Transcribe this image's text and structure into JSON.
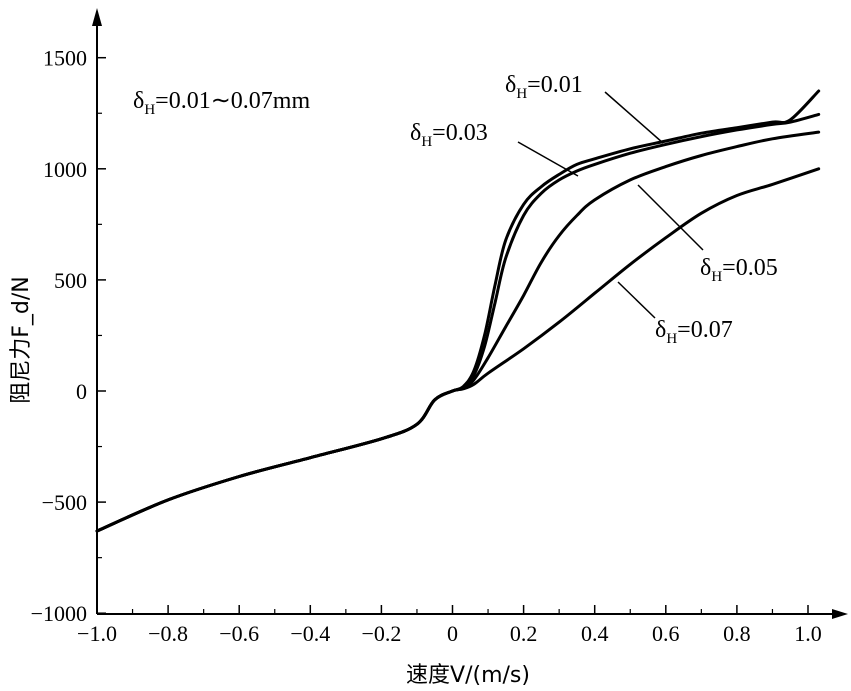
{
  "chart_data": {
    "type": "line",
    "xlabel": "速度V/(m/s)",
    "ylabel": "阻尼力F_d/N",
    "xlim": [
      -1.0,
      1.05
    ],
    "ylim": [
      -1000,
      1650
    ],
    "xticks": [
      "−1.0",
      "−0.8",
      "−0.6",
      "−0.4",
      "−0.2",
      "0",
      "0.2",
      "0.4",
      "0.6",
      "0.8",
      "1.0"
    ],
    "xtick_values": [
      -1.0,
      -0.8,
      -0.6,
      -0.4,
      -0.2,
      0,
      0.2,
      0.4,
      0.6,
      0.8,
      1.0
    ],
    "yticks": [
      "−1000",
      "−500",
      "0",
      "500",
      "1000",
      "1500"
    ],
    "ytick_values": [
      -1000,
      -500,
      0,
      500,
      1000,
      1500
    ],
    "grid": false,
    "annotation_range": "δH=0.01∼0.07mm",
    "series": [
      {
        "name": "δH=0.01",
        "x": [
          -1.0,
          -0.8,
          -0.6,
          -0.4,
          -0.2,
          -0.1,
          -0.05,
          0,
          0.03,
          0.06,
          0.09,
          0.12,
          0.15,
          0.2,
          0.25,
          0.3,
          0.35,
          0.4,
          0.5,
          0.6,
          0.7,
          0.8,
          0.9,
          0.95,
          1.03
        ],
        "y": [
          -630,
          -490,
          -385,
          -300,
          -215,
          -150,
          -40,
          0,
          20,
          90,
          250,
          480,
          680,
          840,
          920,
          975,
          1020,
          1045,
          1090,
          1125,
          1160,
          1185,
          1210,
          1220,
          1350
        ]
      },
      {
        "name": "δH=0.03",
        "x": [
          -1.0,
          -0.8,
          -0.6,
          -0.4,
          -0.2,
          -0.1,
          -0.05,
          0,
          0.03,
          0.06,
          0.09,
          0.12,
          0.15,
          0.2,
          0.25,
          0.3,
          0.35,
          0.4,
          0.5,
          0.6,
          0.7,
          0.8,
          0.9,
          0.95,
          1.03
        ],
        "y": [
          -630,
          -490,
          -385,
          -300,
          -215,
          -150,
          -40,
          0,
          15,
          70,
          200,
          400,
          600,
          790,
          890,
          950,
          990,
          1020,
          1070,
          1110,
          1145,
          1175,
          1200,
          1210,
          1245
        ]
      },
      {
        "name": "δH=0.05",
        "x": [
          -1.0,
          -0.8,
          -0.6,
          -0.4,
          -0.2,
          -0.1,
          -0.05,
          0,
          0.03,
          0.06,
          0.1,
          0.15,
          0.2,
          0.25,
          0.3,
          0.35,
          0.4,
          0.5,
          0.6,
          0.7,
          0.8,
          0.9,
          1.03
        ],
        "y": [
          -630,
          -490,
          -385,
          -300,
          -215,
          -150,
          -40,
          0,
          12,
          50,
          150,
          290,
          430,
          580,
          700,
          790,
          860,
          950,
          1010,
          1060,
          1100,
          1135,
          1165
        ]
      },
      {
        "name": "δH=0.07",
        "x": [
          -1.0,
          -0.8,
          -0.6,
          -0.4,
          -0.2,
          -0.1,
          -0.05,
          0,
          0.03,
          0.06,
          0.1,
          0.2,
          0.3,
          0.4,
          0.5,
          0.6,
          0.7,
          0.8,
          0.9,
          1.03
        ],
        "y": [
          -630,
          -490,
          -385,
          -300,
          -215,
          -150,
          -40,
          0,
          10,
          30,
          80,
          190,
          310,
          440,
          570,
          690,
          800,
          880,
          930,
          1000
        ]
      }
    ]
  }
}
